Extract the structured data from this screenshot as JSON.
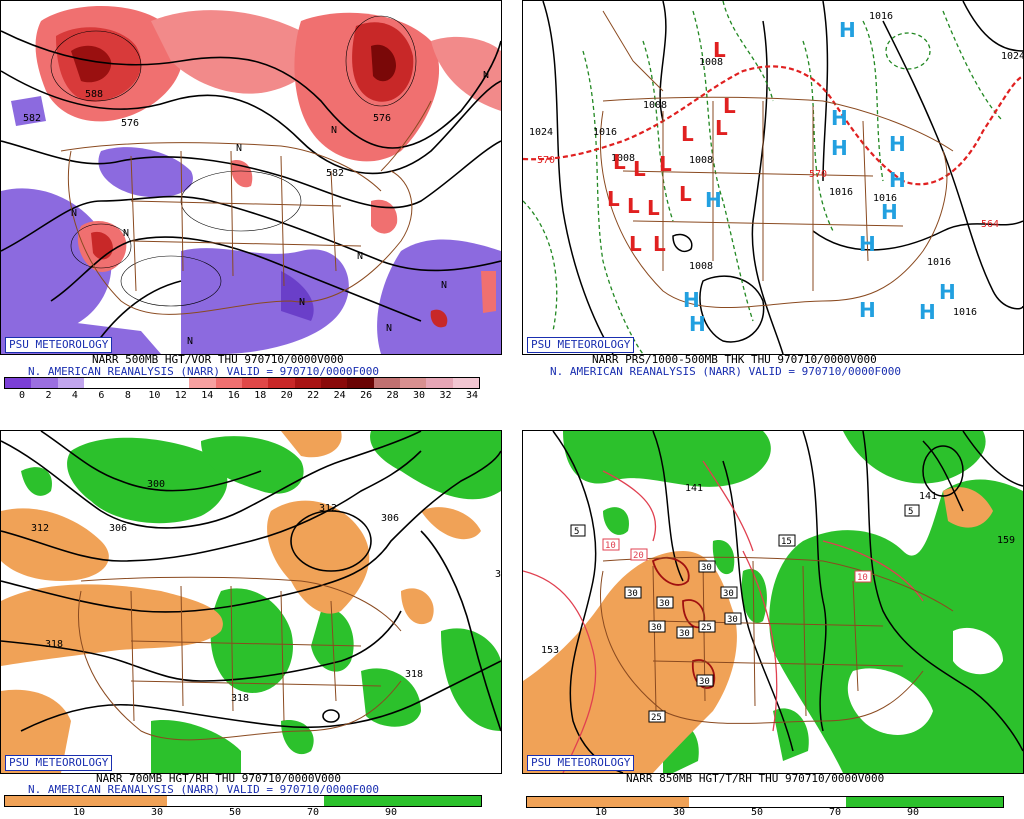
{
  "panels": {
    "p1": {
      "badge": "PSU METEOROLOGY",
      "title": "NARR 500MB HGT/VOR THU 970710/0000V000",
      "subtitle": "N. AMERICAN REANALYSIS (NARR) VALID = 970710/0000F000",
      "legend_ticks": [
        "0",
        "2",
        "4",
        "6",
        "8",
        "10",
        "12",
        "14",
        "16",
        "18",
        "20",
        "22",
        "24",
        "26",
        "28",
        "30",
        "32",
        "34"
      ],
      "legend_colors": [
        "#7b3fd6",
        "#9b6fe0",
        "#c2a6ee",
        "#ffffff",
        "#ffffff",
        "#ffffff",
        "#ffffff",
        "#f6a0a0",
        "#f07070",
        "#e04848",
        "#c82828",
        "#a81414",
        "#8a0a0a",
        "#6a0404",
        "#c07070",
        "#d89090",
        "#e6a6b6",
        "#f2c6d2"
      ],
      "contour_labels": [
        "588",
        "582",
        "576",
        "576",
        "582",
        "N",
        "N",
        "N",
        "N",
        "N",
        "N",
        "N",
        "N",
        "N",
        "N"
      ]
    },
    "p2": {
      "badge": "PSU METEOROLOGY",
      "title": "NARR PRS/1000-500MB THK THU 970710/0000V000",
      "subtitle": "N. AMERICAN REANALYSIS (NARR) VALID = 970710/0000F000",
      "isobar_labels": [
        "1016",
        "1024",
        "1024",
        "1016",
        "1008",
        "1008",
        "1008",
        "1008",
        "1016",
        "1016",
        "1008",
        "1016",
        "1016"
      ],
      "thickness_labels": [
        "570",
        "570",
        "564"
      ],
      "low_symbol": "L",
      "high_symbol": "H"
    },
    "p3": {
      "badge": "PSU METEOROLOGY",
      "title": "NARR 700MB HGT/RH THU 970710/0000V000",
      "subtitle": "N. AMERICAN REANALYSIS (NARR) VALID = 970710/0000F000",
      "legend_ticks": [
        "10",
        "30",
        "50",
        "70",
        "90"
      ],
      "contour_labels": [
        "300",
        "306",
        "312",
        "312",
        "306",
        "318",
        "318",
        "318",
        "3"
      ]
    },
    "p4": {
      "badge": "PSU METEOROLOGY",
      "title": "NARR 850MB HGT/T/RH THU 970710/0000V000",
      "legend_ticks": [
        "10",
        "30",
        "50",
        "70",
        "90"
      ],
      "height_labels": [
        "141",
        "159",
        "153",
        "141"
      ],
      "temp_labels": [
        "5",
        "10",
        "20",
        "30",
        "30",
        "30",
        "30",
        "30",
        "30",
        "25",
        "30",
        "30",
        "15",
        "10",
        "5",
        "25"
      ]
    }
  },
  "colors": {
    "border_brown": "#8a4a20",
    "badge_blue": "#1a2fb0",
    "rh_dry": "#f0a257",
    "rh_moist": "#2cc12c",
    "low_red": "#e02020",
    "high_blue": "#22a0e0",
    "thickness_red": "#e02020",
    "thickness_green": "#228822"
  }
}
